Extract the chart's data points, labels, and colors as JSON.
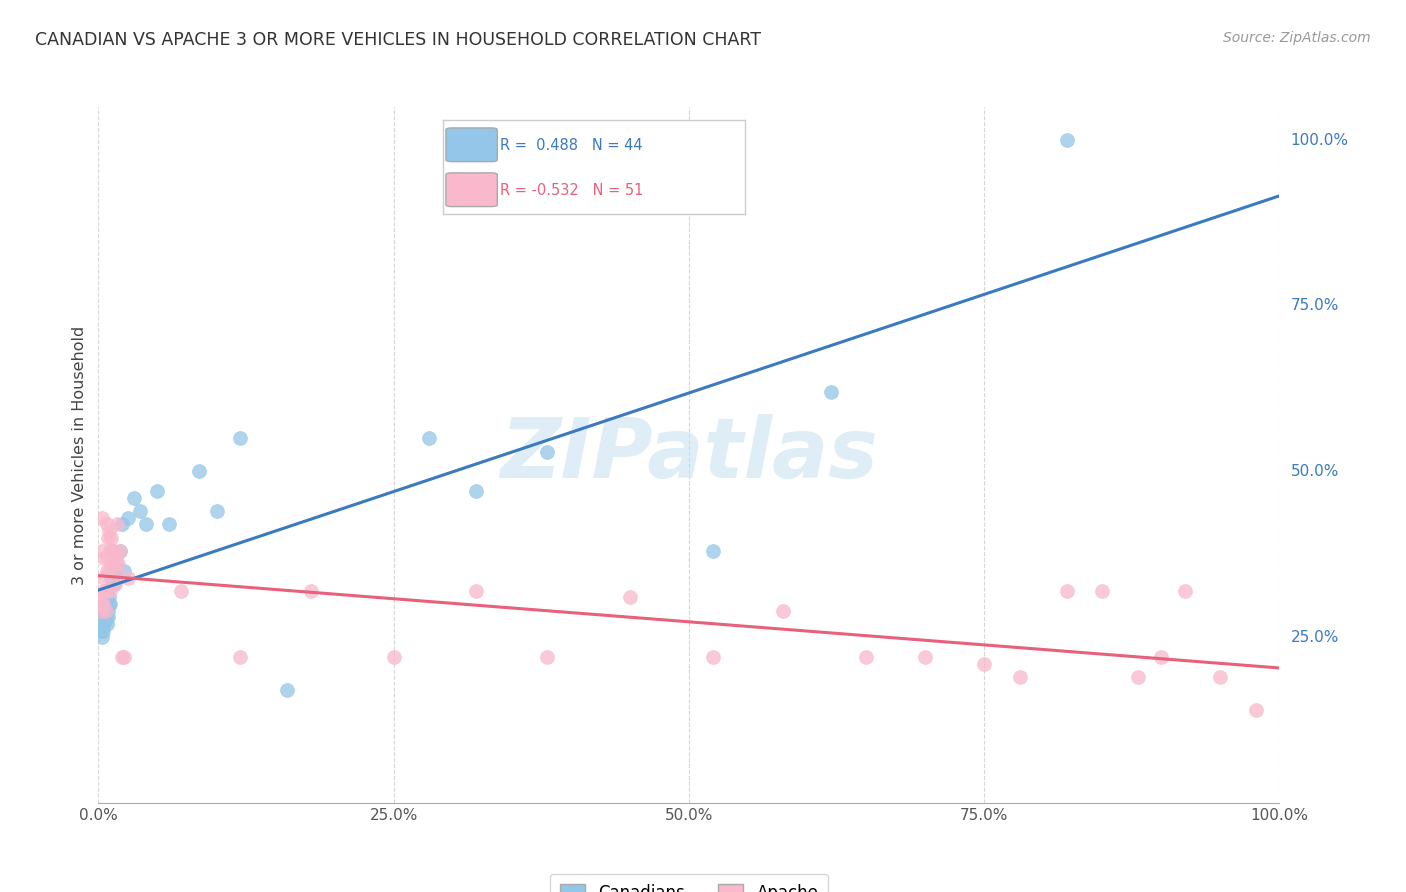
{
  "title": "CANADIAN VS APACHE 3 OR MORE VEHICLES IN HOUSEHOLD CORRELATION CHART",
  "source": "Source: ZipAtlas.com",
  "ylabel": "3 or more Vehicles in Household",
  "watermark": "ZIPatlas",
  "color_canadians": "#93c6e8",
  "color_apache": "#f9b8cc",
  "color_line_canadians": "#3a7abf",
  "color_line_apache": "#e8607a",
  "canadians_x": [
    0.001,
    0.002,
    0.002,
    0.003,
    0.003,
    0.003,
    0.004,
    0.004,
    0.005,
    0.005,
    0.005,
    0.006,
    0.006,
    0.007,
    0.007,
    0.008,
    0.008,
    0.009,
    0.009,
    0.01,
    0.011,
    0.012,
    0.013,
    0.014,
    0.015,
    0.018,
    0.02,
    0.022,
    0.025,
    0.03,
    0.035,
    0.04,
    0.05,
    0.06,
    0.085,
    0.1,
    0.12,
    0.16,
    0.28,
    0.32,
    0.38,
    0.52,
    0.62,
    0.82
  ],
  "canadians_y": [
    0.28,
    0.27,
    0.26,
    0.29,
    0.25,
    0.3,
    0.27,
    0.26,
    0.3,
    0.28,
    0.27,
    0.3,
    0.28,
    0.31,
    0.27,
    0.29,
    0.28,
    0.31,
    0.3,
    0.3,
    0.34,
    0.38,
    0.33,
    0.35,
    0.36,
    0.38,
    0.42,
    0.35,
    0.43,
    0.46,
    0.44,
    0.42,
    0.47,
    0.42,
    0.5,
    0.44,
    0.55,
    0.17,
    0.55,
    0.47,
    0.53,
    0.38,
    0.62,
    1.0
  ],
  "apache_x": [
    0.001,
    0.002,
    0.002,
    0.003,
    0.003,
    0.004,
    0.004,
    0.005,
    0.005,
    0.006,
    0.006,
    0.007,
    0.007,
    0.008,
    0.008,
    0.009,
    0.009,
    0.01,
    0.01,
    0.011,
    0.012,
    0.013,
    0.014,
    0.015,
    0.015,
    0.016,
    0.017,
    0.018,
    0.02,
    0.022,
    0.025,
    0.07,
    0.12,
    0.18,
    0.25,
    0.32,
    0.38,
    0.45,
    0.52,
    0.58,
    0.65,
    0.7,
    0.75,
    0.78,
    0.82,
    0.85,
    0.88,
    0.9,
    0.92,
    0.95,
    0.98
  ],
  "apache_y": [
    0.31,
    0.3,
    0.29,
    0.43,
    0.38,
    0.32,
    0.3,
    0.37,
    0.34,
    0.32,
    0.29,
    0.42,
    0.35,
    0.4,
    0.37,
    0.41,
    0.35,
    0.38,
    0.32,
    0.4,
    0.36,
    0.38,
    0.33,
    0.37,
    0.35,
    0.42,
    0.36,
    0.38,
    0.22,
    0.22,
    0.34,
    0.32,
    0.22,
    0.32,
    0.22,
    0.32,
    0.22,
    0.31,
    0.22,
    0.29,
    0.22,
    0.22,
    0.21,
    0.19,
    0.32,
    0.32,
    0.19,
    0.22,
    0.32,
    0.19,
    0.14
  ],
  "xlim": [
    0,
    1.0
  ],
  "ylim": [
    0,
    1.05
  ],
  "xticks": [
    0,
    0.25,
    0.5,
    0.75,
    1.0
  ],
  "xticklabels": [
    "0.0%",
    "25.0%",
    "50.0%",
    "75.0%",
    "100.0%"
  ],
  "yticks": [
    0.25,
    0.5,
    0.75,
    1.0
  ],
  "yticklabels": [
    "25.0%",
    "50.0%",
    "75.0%",
    "100.0%"
  ]
}
